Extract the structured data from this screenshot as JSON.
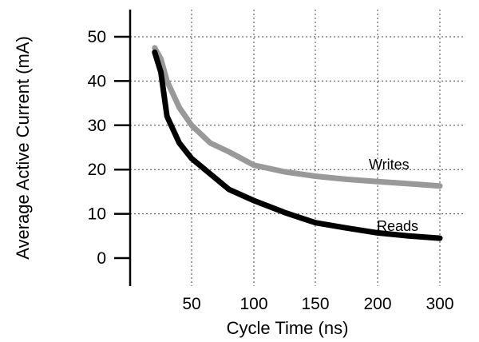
{
  "chart_data": {
    "type": "line",
    "title": "",
    "xlabel": "Cycle Time (ns)",
    "ylabel": "Average Active Current (mA)",
    "x_tick_labels": [
      "50",
      "100",
      "150",
      "200",
      "300"
    ],
    "y_ticks": [
      0,
      10,
      20,
      30,
      40,
      50
    ],
    "ylim": [
      0,
      55
    ],
    "grid": "dotted vertical and horizontal",
    "series": [
      {
        "name": "Writes",
        "color": "#999999",
        "points": [
          {
            "x": 20,
            "y": 47.5
          },
          {
            "x": 25,
            "y": 45
          },
          {
            "x": 30,
            "y": 40
          },
          {
            "x": 40,
            "y": 34
          },
          {
            "x": 50,
            "y": 30
          },
          {
            "x": 65,
            "y": 26
          },
          {
            "x": 80,
            "y": 24
          },
          {
            "x": 100,
            "y": 21
          },
          {
            "x": 125,
            "y": 19.5
          },
          {
            "x": 150,
            "y": 18.5
          },
          {
            "x": 175,
            "y": 17.8
          },
          {
            "x": 200,
            "y": 17.3
          },
          {
            "x": 250,
            "y": 16.8
          },
          {
            "x": 300,
            "y": 16.3
          }
        ]
      },
      {
        "name": "Reads",
        "color": "#000000",
        "points": [
          {
            "x": 20,
            "y": 46.5
          },
          {
            "x": 25,
            "y": 42
          },
          {
            "x": 30,
            "y": 32
          },
          {
            "x": 40,
            "y": 26
          },
          {
            "x": 50,
            "y": 22.5
          },
          {
            "x": 65,
            "y": 19
          },
          {
            "x": 80,
            "y": 15.5
          },
          {
            "x": 100,
            "y": 13
          },
          {
            "x": 125,
            "y": 10.3
          },
          {
            "x": 150,
            "y": 8
          },
          {
            "x": 175,
            "y": 6.8
          },
          {
            "x": 200,
            "y": 5.7
          },
          {
            "x": 250,
            "y": 5
          },
          {
            "x": 300,
            "y": 4.5
          }
        ]
      }
    ]
  }
}
